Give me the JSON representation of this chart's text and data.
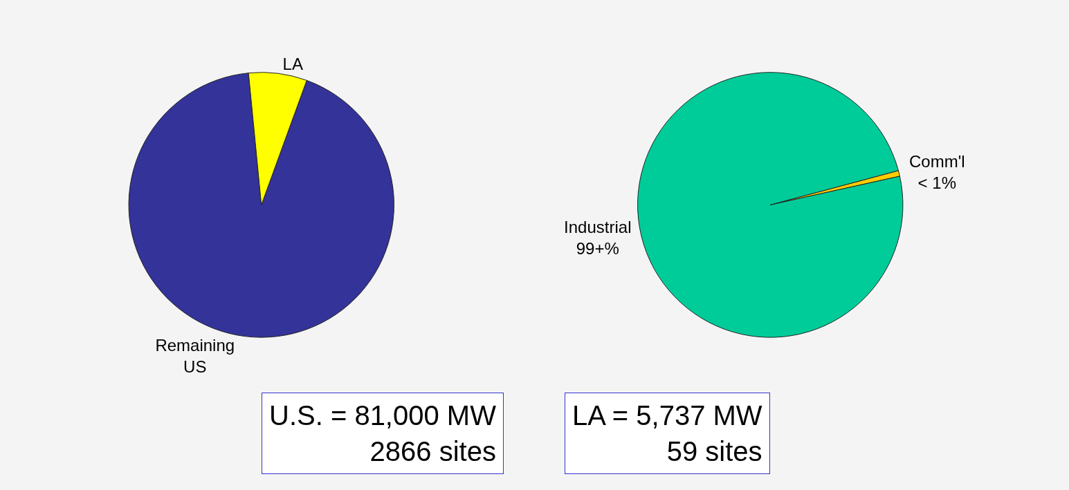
{
  "chart_data": [
    {
      "type": "pie",
      "categories": [
        "Remaining\nUS",
        "LA"
      ],
      "values": [
        92.9,
        7.1
      ],
      "colors": [
        "#333399",
        "#ffff00"
      ],
      "annotations": [
        "U.S. = 81,000 MW\n2866 sites"
      ]
    },
    {
      "type": "pie",
      "categories": [
        "Comm'l\n< 1%",
        "Industrial\n99+%"
      ],
      "values": [
        0.7,
        99.3
      ],
      "colors": [
        "#ffcc00",
        "#00cc99"
      ],
      "annotations": [
        "LA = 5,737 MW\n59 sites"
      ]
    }
  ]
}
